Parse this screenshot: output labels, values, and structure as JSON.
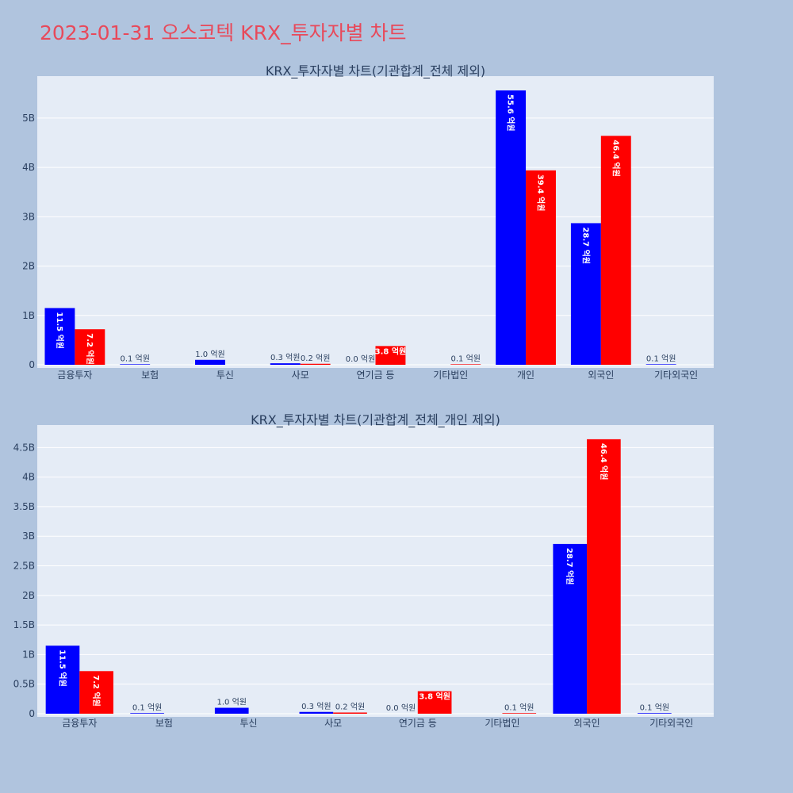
{
  "title": "2023-01-31 오스코텍 KRX_투자자별 차트",
  "colors": {
    "background": "#b0c4de",
    "plot_bg": "#e5ecf6",
    "title": "#e8495a",
    "buy": "#0000ff",
    "sell": "#ff0000",
    "grid": "#ffffff",
    "text": "#2a3f5f"
  },
  "chart_data": [
    {
      "type": "bar",
      "title": "KRX_투자자별 차트(기관합계_전체 제외)",
      "categories": [
        "금융투자",
        "보험",
        "투신",
        "사모",
        "연기금 등",
        "기타법인",
        "개인",
        "외국인",
        "기타외국인"
      ],
      "series": [
        {
          "color": "#0000ff",
          "values": [
            1150000000,
            10000000,
            100000000,
            30000000,
            0,
            0,
            5560000000,
            2870000000,
            10000000
          ],
          "labels": [
            "11.5 억원",
            "0.1 억원",
            "1.0 억원",
            "0.3 억원",
            "0.0 억원",
            "",
            "55.6 억원",
            "28.7 억원",
            "0.1 억원"
          ]
        },
        {
          "color": "#ff0000",
          "values": [
            720000000,
            0,
            0,
            20000000,
            380000000,
            10000000,
            3940000000,
            4640000000,
            0
          ],
          "labels": [
            "7.2 억원",
            "",
            "",
            "0.2 억원",
            "3.8 억원",
            "0.1 억원",
            "39.4 억원",
            "46.4 억원",
            ""
          ]
        }
      ],
      "yticks": [
        0,
        1000000000,
        2000000000,
        3000000000,
        4000000000,
        5000000000
      ],
      "ytick_labels": [
        "0",
        "1B",
        "2B",
        "3B",
        "4B",
        "5B"
      ],
      "ylim": [
        0,
        5850000000
      ],
      "grid": true
    },
    {
      "type": "bar",
      "title": "KRX_투자자별 차트(기관합계_전체_개인 제외)",
      "categories": [
        "금융투자",
        "보험",
        "투신",
        "사모",
        "연기금 등",
        "기타법인",
        "외국인",
        "기타외국인"
      ],
      "series": [
        {
          "color": "#0000ff",
          "values": [
            1150000000,
            10000000,
            100000000,
            30000000,
            0,
            0,
            2870000000,
            10000000
          ],
          "labels": [
            "11.5 억원",
            "0.1 억원",
            "1.0 억원",
            "0.3 억원",
            "0.0 억원",
            "",
            "28.7 억원",
            "0.1 억원"
          ]
        },
        {
          "color": "#ff0000",
          "values": [
            720000000,
            0,
            0,
            20000000,
            380000000,
            10000000,
            4640000000,
            0
          ],
          "labels": [
            "7.2 억원",
            "",
            "",
            "0.2 억원",
            "3.8 억원",
            "0.1 억원",
            "46.4 억원",
            ""
          ]
        }
      ],
      "yticks": [
        0,
        500000000,
        1000000000,
        1500000000,
        2000000000,
        2500000000,
        3000000000,
        3500000000,
        4000000000,
        4500000000
      ],
      "ytick_labels": [
        "0",
        "0.5B",
        "1B",
        "1.5B",
        "2B",
        "2.5B",
        "3B",
        "3.5B",
        "4B",
        "4.5B"
      ],
      "ylim": [
        0,
        4880000000
      ],
      "grid": true
    }
  ]
}
